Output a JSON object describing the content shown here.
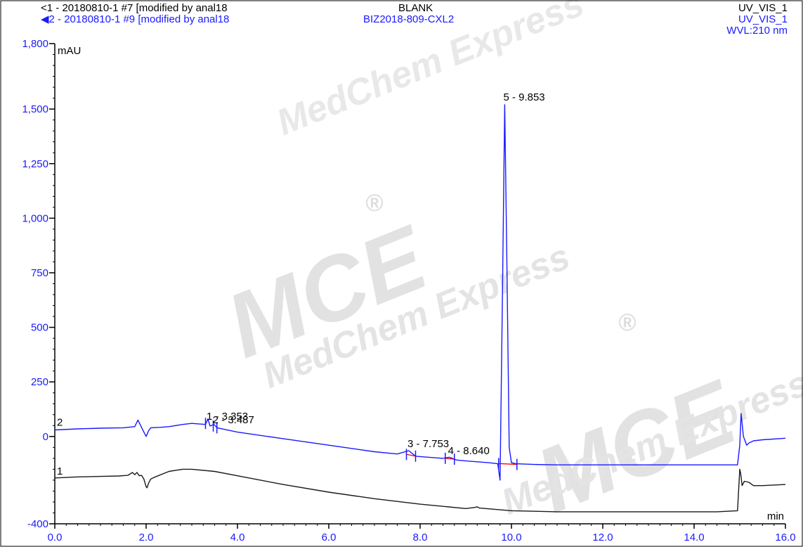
{
  "header": {
    "trace1_label": "1 - 20180810-1 #7 [modified by anal18",
    "trace2_label": "2 - 20180810-1 #9 [modified by anal18",
    "trace1_sample": "BLANK",
    "trace2_sample": "BIZ2018-809-CXL2",
    "trace1_channel": "UV_VIS_1",
    "trace2_channel": "UV_VIS_1",
    "wavelength": "WVL:210 nm"
  },
  "watermark": {
    "brand": "MCE",
    "tagline": "MedChem Express",
    "registered": "®"
  },
  "chart_data": {
    "type": "line",
    "ylabel": "mAU",
    "xlabel": "min",
    "xlim": [
      0.0,
      16.0
    ],
    "ylim": [
      -400,
      1800
    ],
    "x_ticks": [
      0.0,
      2.0,
      4.0,
      6.0,
      8.0,
      10.0,
      12.0,
      14.0,
      16.0
    ],
    "x_tick_labels": [
      "0.0",
      "2.0",
      "4.0",
      "6.0",
      "8.0",
      "10.0",
      "12.0",
      "14.0",
      "16.0"
    ],
    "y_ticks": [
      1800,
      1500,
      1250,
      1000,
      750,
      500,
      250,
      0,
      -400
    ],
    "y_tick_labels": [
      "1,800",
      "1,500",
      "1,250",
      "1,000",
      "750",
      "500",
      "250",
      "0",
      "-400"
    ],
    "colors": {
      "trace1": "#1a1a1a",
      "trace2": "#1a1aff",
      "baseline": "#ff0000"
    },
    "series": [
      {
        "name": "1",
        "x": [
          0.0,
          0.5,
          1.0,
          1.4,
          1.6,
          1.7,
          1.75,
          1.8,
          1.85,
          1.9,
          1.95,
          2.0,
          2.02,
          2.05,
          2.1,
          2.2,
          2.5,
          2.8,
          3.0,
          3.5,
          4.0,
          5.0,
          6.0,
          7.0,
          8.0,
          9.0,
          9.2,
          9.25,
          9.3,
          10.0,
          11.0,
          12.0,
          13.0,
          14.0,
          14.5,
          14.95,
          15.0,
          15.02,
          15.05,
          15.1,
          15.2,
          15.3,
          15.5,
          16.0
        ],
        "y": [
          -190,
          -185,
          -183,
          -181,
          -178,
          -165,
          -175,
          -165,
          -180,
          -178,
          -195,
          -230,
          -235,
          -215,
          -195,
          -185,
          -160,
          -150,
          -150,
          -160,
          -180,
          -220,
          -255,
          -285,
          -310,
          -330,
          -325,
          -322,
          -328,
          -340,
          -345,
          -345,
          -345,
          -345,
          -345,
          -340,
          -150,
          -170,
          -225,
          -205,
          -210,
          -225,
          -225,
          -220
        ]
      },
      {
        "name": "2",
        "x": [
          0.0,
          0.5,
          1.0,
          1.5,
          1.75,
          1.82,
          1.88,
          1.95,
          2.0,
          2.05,
          2.1,
          2.3,
          2.5,
          2.8,
          3.0,
          3.3,
          3.353,
          3.4,
          3.487,
          3.55,
          4.0,
          5.0,
          6.0,
          7.0,
          7.5,
          7.753,
          7.9,
          8.0,
          8.5,
          8.64,
          8.8,
          9.0,
          9.5,
          9.7,
          9.75,
          9.8,
          9.853,
          9.9,
          9.95,
          10.0,
          10.1,
          10.5,
          11.0,
          12.0,
          13.0,
          14.0,
          14.95,
          15.0,
          15.03,
          15.08,
          15.15,
          15.2,
          15.3,
          15.5,
          16.0
        ],
        "y": [
          30,
          35,
          38,
          40,
          45,
          75,
          50,
          20,
          0,
          25,
          40,
          42,
          45,
          55,
          60,
          55,
          80,
          48,
          55,
          40,
          20,
          -10,
          -40,
          -70,
          -80,
          -65,
          -90,
          -92,
          -100,
          -95,
          -108,
          -112,
          -120,
          -125,
          -200,
          600,
          1520,
          800,
          -50,
          -120,
          -125,
          -128,
          -130,
          -130,
          -130,
          -130,
          -130,
          -40,
          105,
          0,
          -40,
          -30,
          -20,
          -15,
          -8
        ]
      }
    ],
    "annotations": [
      {
        "label": "1 - 3.353",
        "x": 3.353,
        "y": 58
      },
      {
        "label": "2 - 3.487",
        "x": 3.487,
        "y": 42
      },
      {
        "label": "3 - 7.753",
        "x": 7.753,
        "y": -68
      },
      {
        "label": "4 - 8.640",
        "x": 8.64,
        "y": -100
      },
      {
        "label": "5 - 9.853",
        "x": 9.853,
        "y": 1520
      }
    ],
    "baseline_segments": [
      {
        "x1": 7.7,
        "y1": -82,
        "x2": 7.9,
        "y2": -90
      },
      {
        "x1": 8.55,
        "y1": -100,
        "x2": 8.75,
        "y2": -104
      },
      {
        "x1": 9.72,
        "y1": -124,
        "x2": 10.12,
        "y2": -128
      }
    ],
    "peak_markers": [
      {
        "x": 3.3,
        "y": 60
      },
      {
        "x": 3.47,
        "y": 48
      },
      {
        "x": 3.55,
        "y": 40
      },
      {
        "x": 7.7,
        "y": -82
      },
      {
        "x": 7.9,
        "y": -90
      },
      {
        "x": 8.55,
        "y": -100
      },
      {
        "x": 8.75,
        "y": -104
      },
      {
        "x": 9.72,
        "y": -124
      },
      {
        "x": 10.12,
        "y": -128
      }
    ],
    "trace_labels": [
      {
        "label": "1",
        "y": -175
      },
      {
        "label": "2",
        "y": 50
      }
    ],
    "grid": false
  }
}
